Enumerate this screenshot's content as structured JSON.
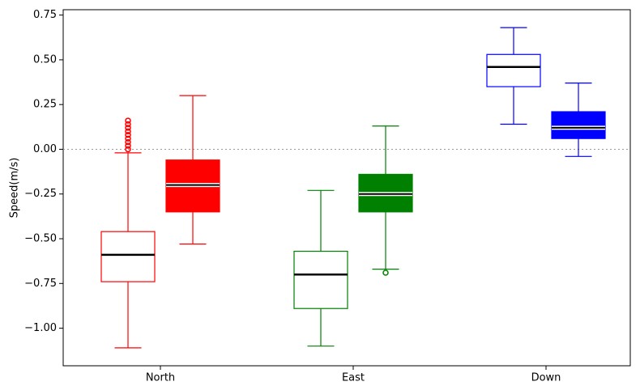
{
  "chart_data": {
    "type": "box",
    "ylabel": "Speed(m/s)",
    "categories": [
      "North",
      "East",
      "Down"
    ],
    "ylim": [
      -1.21,
      0.78
    ],
    "yticks": [
      {
        "value": -1.0,
        "label": "−1.00"
      },
      {
        "value": -0.75,
        "label": "−0.75"
      },
      {
        "value": -0.5,
        "label": "−0.50"
      },
      {
        "value": -0.25,
        "label": "−0.25"
      },
      {
        "value": 0,
        "label": "0.00"
      },
      {
        "value": 0.25,
        "label": "0.25"
      },
      {
        "value": 0.5,
        "label": "0.50"
      },
      {
        "value": 0.75,
        "label": "0.75"
      }
    ],
    "hline": 0,
    "series": [
      {
        "style": "hollow",
        "colors": [
          "#ff0000",
          "#008000",
          "#0000ff"
        ],
        "boxes": [
          {
            "whislo": -1.11,
            "q1": -0.74,
            "med": -0.59,
            "q3": -0.46,
            "whishi": -0.02,
            "fliers": [
              0.0,
              0.02,
              0.04,
              0.06,
              0.08,
              0.1,
              0.12,
              0.14,
              0.16
            ]
          },
          {
            "whislo": -1.1,
            "q1": -0.89,
            "med": -0.7,
            "q3": -0.57,
            "whishi": -0.23,
            "fliers": []
          },
          {
            "whislo": 0.14,
            "q1": 0.35,
            "med": 0.46,
            "q3": 0.53,
            "whishi": 0.68,
            "fliers": []
          }
        ]
      },
      {
        "style": "filled",
        "colors": [
          "#ff0000",
          "#008000",
          "#0000ff"
        ],
        "boxes": [
          {
            "whislo": -0.53,
            "q1": -0.35,
            "med": -0.2,
            "q3": -0.06,
            "whishi": 0.3,
            "fliers": []
          },
          {
            "whislo": -0.67,
            "q1": -0.35,
            "med": -0.25,
            "q3": -0.14,
            "whishi": 0.13,
            "fliers": [
              -0.69
            ]
          },
          {
            "whislo": -0.04,
            "q1": 0.06,
            "med": 0.12,
            "q3": 0.21,
            "whishi": 0.37,
            "fliers": []
          }
        ]
      }
    ]
  }
}
